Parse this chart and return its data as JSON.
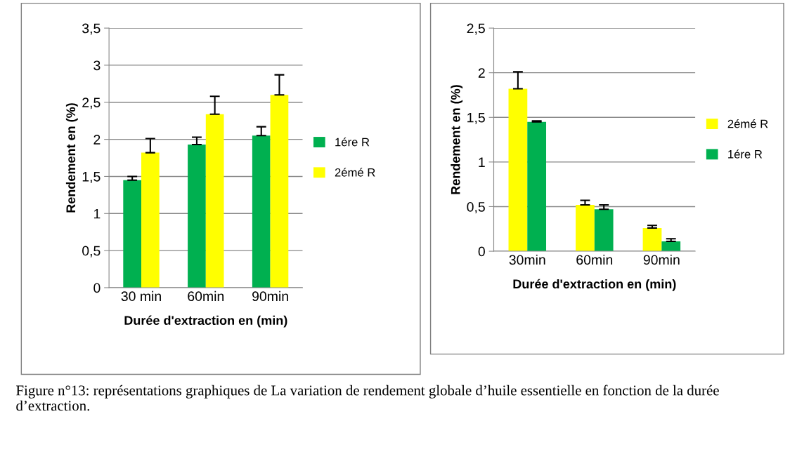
{
  "chart_data": [
    {
      "type": "bar",
      "xlabel": "Durée d'extraction en (min)",
      "ylabel": "Rendement en (%)",
      "categories": [
        "30 min",
        "60min",
        "90min"
      ],
      "series": [
        {
          "name": "1ére R",
          "color": "#00b050",
          "values": [
            1.45,
            1.93,
            2.05
          ],
          "errors": [
            [
              1.45,
              1.5
            ],
            [
              1.93,
              2.03
            ],
            [
              2.05,
              2.17
            ]
          ]
        },
        {
          "name": "2émé R",
          "color": "#ffff00",
          "values": [
            1.82,
            2.34,
            2.6
          ],
          "errors": [
            [
              1.82,
              2.01
            ],
            [
              2.34,
              2.58
            ],
            [
              2.6,
              2.87
            ]
          ]
        }
      ],
      "ylim": [
        0,
        3.5
      ],
      "yticks": [
        0,
        {
          "value": 0.5,
          "label": "0,5"
        },
        1,
        {
          "value": 1.5,
          "label": "1,5"
        },
        2,
        {
          "value": 2.5,
          "label": "2,5"
        },
        3,
        {
          "value": 3.5,
          "label": "3,5"
        }
      ],
      "grid": "y",
      "legend": "right",
      "annotations": [
        "Figure n°13: représentations graphiques de La variation de rendement globale d’huile essentielle en fonction de la durée d’extraction."
      ]
    },
    {
      "type": "bar",
      "xlabel": "Durée d'extraction en (min)",
      "ylabel": "Rendement en (%)",
      "categories": [
        "30min",
        "60min",
        "90min"
      ],
      "series": [
        {
          "name": "2émé R",
          "color": "#ffff00",
          "values": [
            1.82,
            0.52,
            0.26
          ],
          "errors": [
            [
              1.82,
              2.01
            ],
            [
              0.52,
              0.57
            ],
            [
              0.26,
              0.29
            ]
          ]
        },
        {
          "name": "1ére R",
          "color": "#00b050",
          "values": [
            1.45,
            0.47,
            0.11
          ],
          "errors": [
            [
              1.45,
              1.46
            ],
            [
              0.47,
              0.52
            ],
            [
              0.11,
              0.14
            ]
          ]
        }
      ],
      "ylim": [
        0,
        2.5
      ],
      "yticks": [
        0,
        {
          "value": 0.5,
          "label": "0,5"
        },
        1,
        {
          "value": 1.5,
          "label": "1,5"
        },
        2,
        {
          "value": 2.5,
          "label": "2,5"
        }
      ],
      "grid": "y",
      "legend": "right"
    }
  ]
}
